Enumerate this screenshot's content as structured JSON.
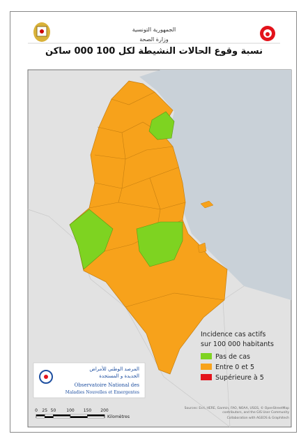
{
  "header": {
    "country": "الجمهورية التونسية",
    "ministry": "وزارة الصحة"
  },
  "title": "نسبة وقوع الحالات النشيطة لكل 100 000 ساكن",
  "legend": {
    "title": [
      "Incidence cas actifs",
      "sur 100 000 habitants"
    ],
    "items": [
      {
        "label": "Pas de cas",
        "color": "#7ed321"
      },
      {
        "label": "Entre 0 et 5",
        "color": "#f7a21b"
      },
      {
        "label": "Supérieure à 5",
        "color": "#e3131b"
      }
    ]
  },
  "scale": {
    "ticks": [
      0,
      25,
      50,
      100,
      150,
      200
    ],
    "unit": "Kilomètres"
  },
  "credits": {
    "sources": [
      "Sources: Esri, HERE, Garmin, FAO, NOAA, USGS, © OpenStreetMap",
      "contributors, and the GIS User Community"
    ],
    "collaboration": "Collaboration with AGEOS & Graphitech"
  },
  "observatory": {
    "arabic": [
      "المرصد الوطني للأمراض",
      "الجديدة و المستجدة"
    ],
    "french": [
      "Observatoire National des",
      "Maladies Nouvelles et Emergentes"
    ]
  }
}
